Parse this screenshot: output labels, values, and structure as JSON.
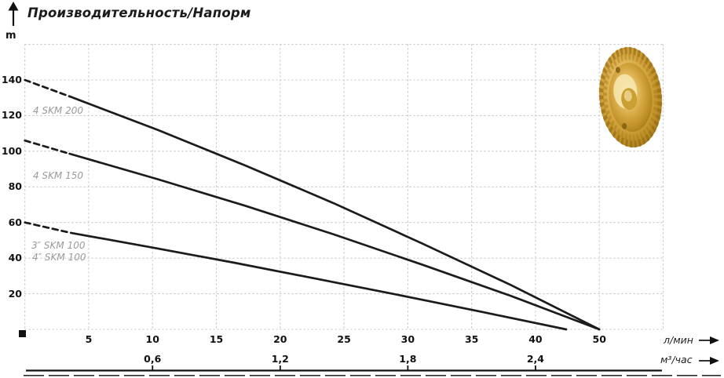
{
  "chart_data": {
    "type": "line",
    "title": "Производительность/Напорм",
    "ylabel": "m",
    "xlabel_primary": "л/мин",
    "xlabel_secondary": "м³/час",
    "grid": true,
    "y_ticks": [
      140,
      120,
      100,
      80,
      60,
      40,
      20
    ],
    "y_range": [
      0,
      160
    ],
    "x_tick_labels": [
      "5",
      "10",
      "15",
      "20",
      "25",
      "30",
      "35",
      "40",
      "50"
    ],
    "x_tick_positions": [
      5,
      10,
      15,
      20,
      25,
      30,
      35,
      40,
      45
    ],
    "x2_tick_labels": [
      "0,6",
      "1,2",
      "1,8",
      "2,4"
    ],
    "x2_tick_positions": [
      10,
      20,
      30,
      40
    ],
    "series": [
      {
        "name": "4 SKM 200",
        "dashed_points": [
          [
            0,
            140
          ],
          [
            3.5,
            130.8
          ]
        ],
        "points": [
          [
            3.5,
            130.8
          ],
          [
            10.4,
            112.0
          ],
          [
            17.3,
            91.9
          ],
          [
            24.2,
            70.8
          ],
          [
            31.1,
            48.3
          ],
          [
            38.1,
            24.8
          ],
          [
            45,
            0
          ]
        ]
      },
      {
        "name": "4 SKM 150",
        "dashed_points": [
          [
            0,
            106
          ],
          [
            3.5,
            98.6
          ]
        ],
        "points": [
          [
            3.5,
            98.6
          ],
          [
            10.4,
            84.3
          ],
          [
            17.3,
            69.3
          ],
          [
            24.2,
            53.3
          ],
          [
            31.1,
            36.4
          ],
          [
            38.1,
            18.7
          ],
          [
            45,
            0
          ]
        ]
      },
      {
        "name": "3″ SKM 100 / 4″ SKM 100",
        "label_lines": [
          "3″ SKM 100",
          "4″ SKM 100"
        ],
        "dashed_points": [
          [
            0,
            60
          ],
          [
            3.6,
            54.2
          ]
        ],
        "points": [
          [
            3.6,
            54.2
          ],
          [
            10.0,
            45.9
          ],
          [
            16.4,
            37.4
          ],
          [
            22.8,
            28.5
          ],
          [
            29.3,
            19.3
          ],
          [
            35.8,
            9.8
          ],
          [
            42.4,
            0
          ]
        ]
      }
    ],
    "colors": {
      "curve": "#1b1b1b",
      "grid": "#cbcbcb",
      "series_label": "#9a9a9a",
      "axis_text": "#111111",
      "impeller_gold": "#d2a23c"
    }
  },
  "decoration": {
    "impeller": "brass pump impeller"
  }
}
